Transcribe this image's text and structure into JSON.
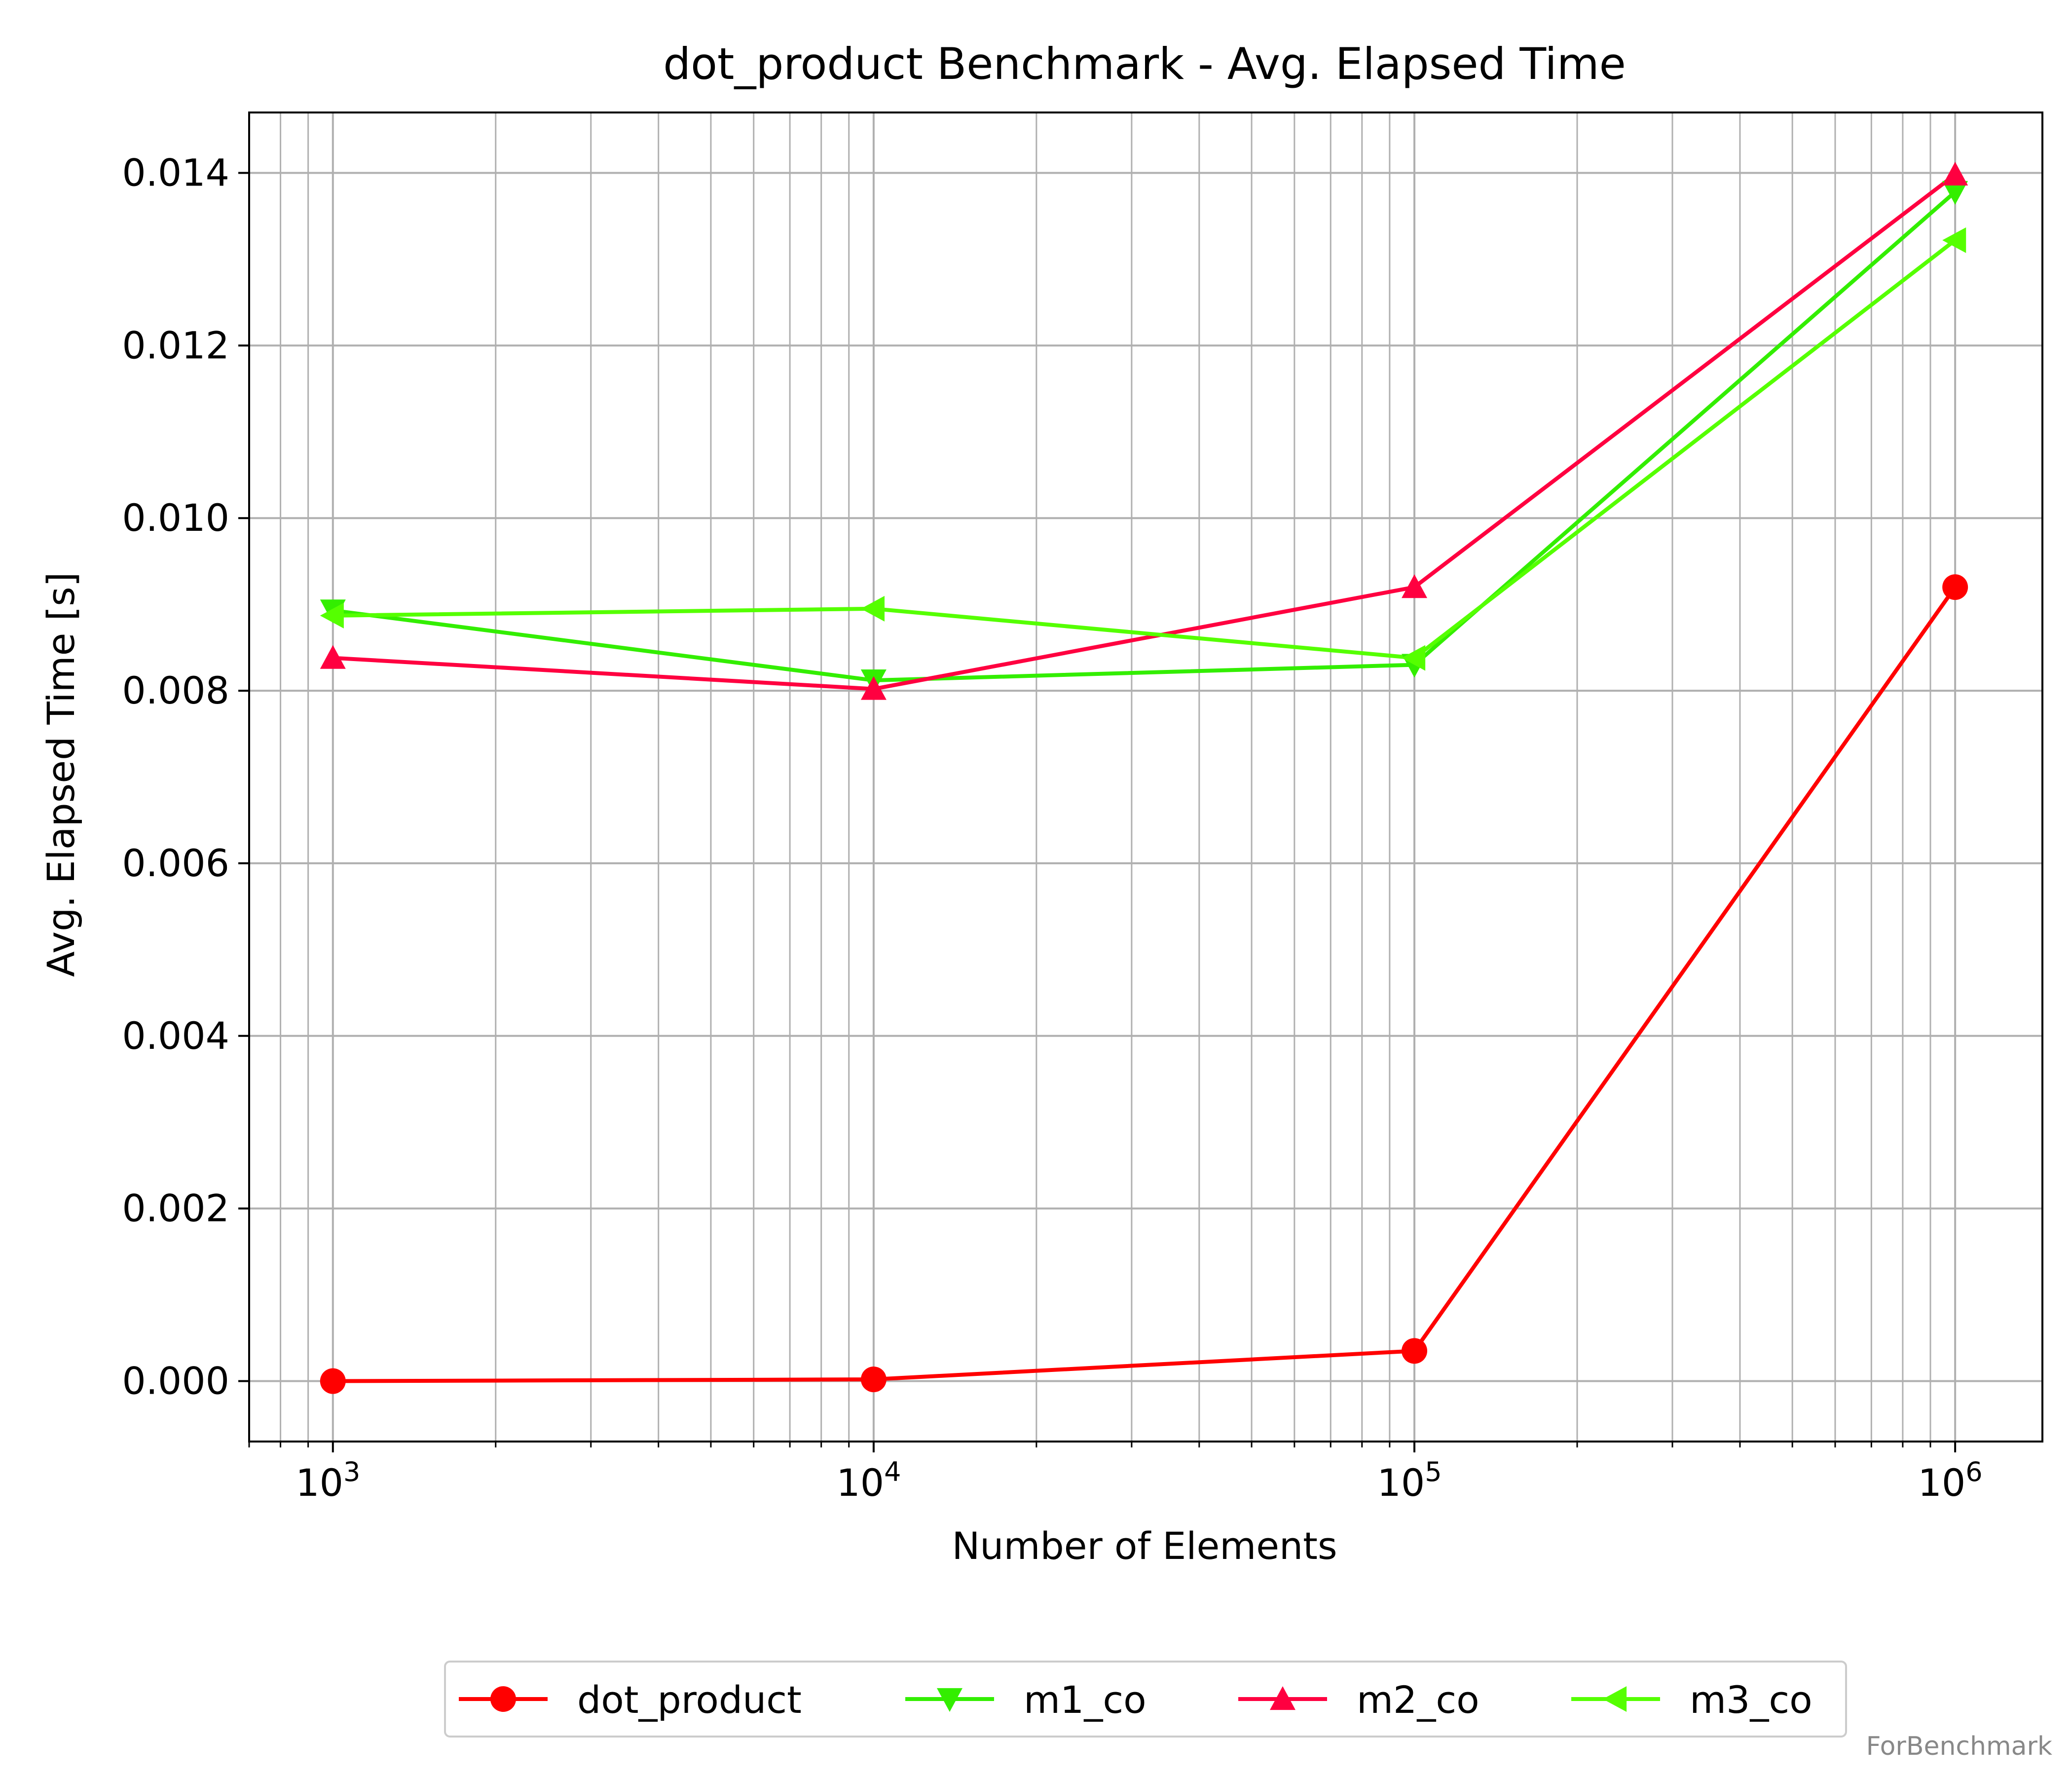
{
  "chart_data": {
    "type": "line",
    "title": "dot_product Benchmark - Avg. Elapsed Time",
    "xlabel": "Number of Elements",
    "ylabel": "Avg. Elapsed Time [s]",
    "x_scale": "log",
    "xlim": [
      700,
      1450000
    ],
    "ylim": [
      -0.0007,
      0.0147
    ],
    "grid": true,
    "legend_position": "bottom-center",
    "x_ticks": [
      {
        "value": 1000,
        "base": "10",
        "exp": "3"
      },
      {
        "value": 10000,
        "base": "10",
        "exp": "4"
      },
      {
        "value": 100000,
        "base": "10",
        "exp": "5"
      },
      {
        "value": 1000000,
        "base": "10",
        "exp": "6"
      }
    ],
    "y_ticks": [
      {
        "value": 0.0,
        "label": "0.000"
      },
      {
        "value": 0.002,
        "label": "0.002"
      },
      {
        "value": 0.004,
        "label": "0.004"
      },
      {
        "value": 0.006,
        "label": "0.006"
      },
      {
        "value": 0.008,
        "label": "0.008"
      },
      {
        "value": 0.01,
        "label": "0.010"
      },
      {
        "value": 0.012,
        "label": "0.012"
      },
      {
        "value": 0.014,
        "label": "0.014"
      }
    ],
    "x": [
      1000,
      10000,
      100000,
      1000000
    ],
    "series": [
      {
        "name": "dot_product",
        "color": "#ff0000",
        "marker": "circle",
        "values": [
          0.0,
          2e-05,
          0.00035,
          0.0092
        ]
      },
      {
        "name": "m1_co",
        "color": "#33ee00",
        "marker": "triangle-down",
        "values": [
          0.00893,
          0.00812,
          0.0083,
          0.01378
        ]
      },
      {
        "name": "m2_co",
        "color": "#ff0040",
        "marker": "triangle-up",
        "values": [
          0.00838,
          0.00802,
          0.0092,
          0.01398
        ]
      },
      {
        "name": "m3_co",
        "color": "#55ff00",
        "marker": "triangle-left",
        "values": [
          0.00887,
          0.00895,
          0.00838,
          0.01322
        ]
      }
    ]
  },
  "watermark": "ForBenchmark"
}
